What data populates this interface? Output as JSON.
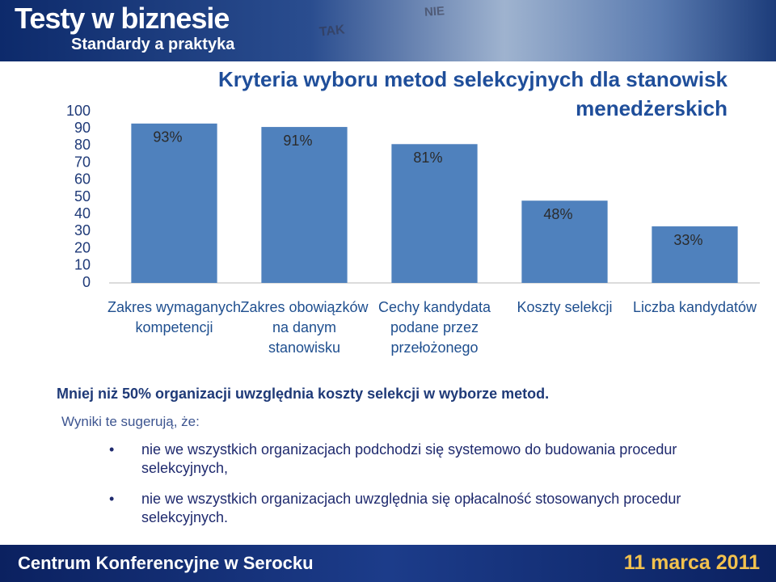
{
  "header": {
    "title": "Testy w biznesie",
    "subtitle": "Standardy a praktyka",
    "photo_texts": [
      "TAK",
      "NIE"
    ]
  },
  "chart_data": {
    "type": "bar",
    "title": "Kryteria wyboru metod selekcyjnych dla stanowisk menedżerskich",
    "categories": [
      "Zakres wymaganych kompetencji",
      "Zakres obowiązków na danym stanowisku",
      "Cechy kandydata podane przez przełożonego",
      "Koszty selekcji",
      "Liczba kandydatów"
    ],
    "values": [
      93,
      91,
      81,
      48,
      33
    ],
    "value_labels": [
      "93%",
      "91%",
      "81%",
      "48%",
      "33%"
    ],
    "color": "#4f81bd",
    "ylim": [
      0,
      100
    ],
    "yticks": [
      0,
      10,
      20,
      30,
      40,
      50,
      60,
      70,
      80,
      90,
      100
    ],
    "grid": false
  },
  "body": {
    "headline": "Mniej niż 50% organizacji uwzględnia koszty selekcji w wyborze metod.",
    "intro": "Wyniki te sugerują, że:",
    "bullets": [
      "nie we wszystkich organizacjach podchodzi się systemowo do budowania procedur selekcyjnych,",
      "nie we wszystkich organizacjach uwzględnia się opłacalność stosowanych procedur selekcyjnych."
    ]
  },
  "footer": {
    "left": "Centrum Konferencyjne w Serocku",
    "right": "11 marca 2011"
  }
}
